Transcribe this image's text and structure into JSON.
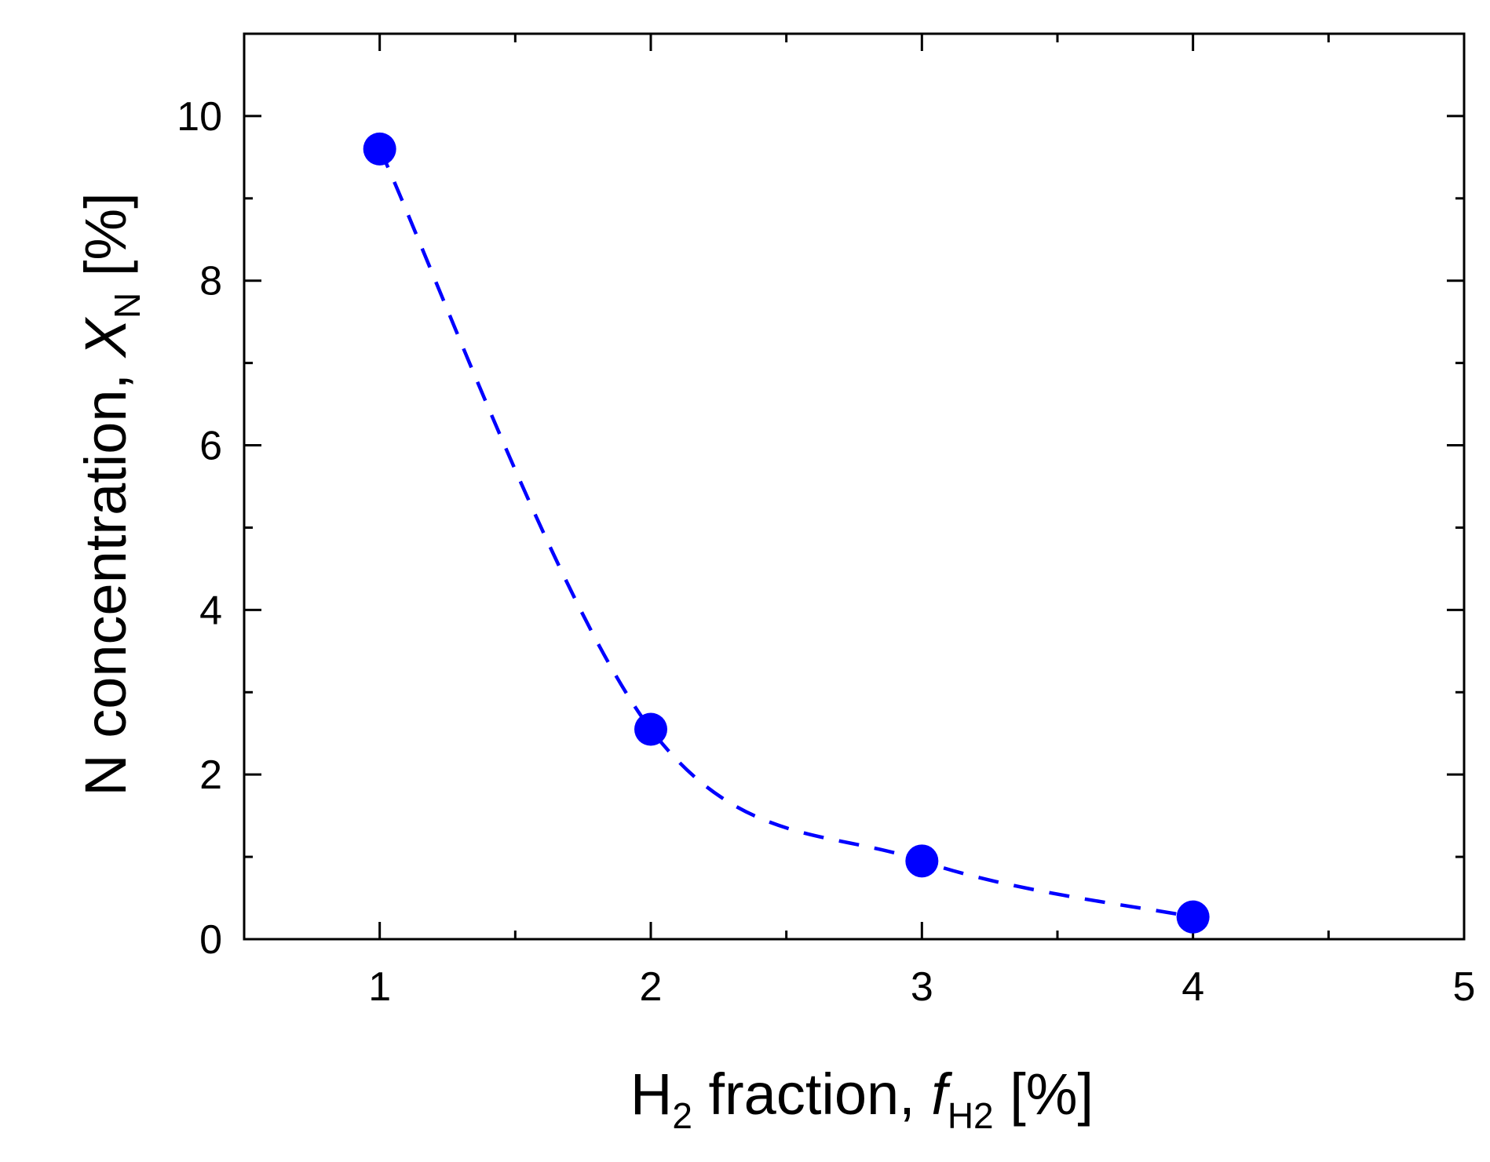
{
  "chart_data": {
    "type": "scatter",
    "x": [
      1,
      2,
      3,
      4
    ],
    "series": [
      {
        "values": [
          9.6,
          2.55,
          0.95,
          0.27
        ],
        "color": "#0000ff",
        "marker": "filled-circle",
        "line": "dashed"
      }
    ],
    "xlabel": {
      "prefix": "H",
      "prefix_sub": "2",
      "middle": " fraction, ",
      "symbol": "f",
      "symbol_sub": "H2",
      "suffix": " [%]"
    },
    "ylabel": {
      "prefix": "N concentration, ",
      "symbol": "X",
      "symbol_sub": "N",
      "suffix": " [%]"
    },
    "xlim": [
      0.5,
      5
    ],
    "ylim": [
      0,
      11
    ],
    "x_ticks": [
      "1",
      "2",
      "3",
      "4",
      "5"
    ],
    "y_ticks": [
      "0",
      "2",
      "4",
      "6",
      "8",
      "10"
    ],
    "grid": false,
    "legend": "none"
  }
}
